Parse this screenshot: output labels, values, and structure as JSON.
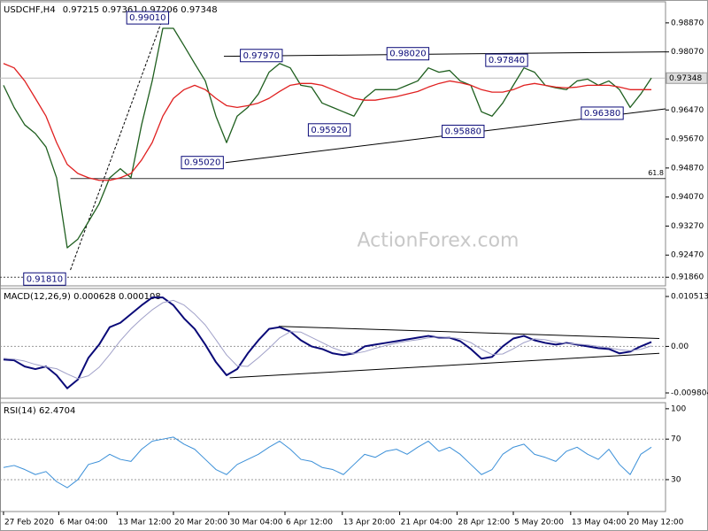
{
  "chart_data": [
    {
      "type": "line",
      "title": "USDCHF,H4",
      "subtitle": "0.97215 0.97361 0.97206 0.97348",
      "watermark": "ActionForex.com",
      "x": [
        0,
        1,
        2,
        3,
        4,
        5,
        6,
        7,
        8,
        9,
        10,
        11,
        12,
        13,
        14,
        15,
        16,
        17,
        18,
        19,
        20,
        21,
        22,
        23,
        24,
        25,
        26,
        27,
        28,
        29,
        30,
        31,
        32,
        33,
        34,
        35,
        36,
        37,
        38,
        39,
        40,
        41,
        42,
        43,
        44,
        45,
        46,
        47,
        48,
        49,
        50,
        51,
        52,
        53,
        54,
        55,
        56,
        57,
        58,
        59,
        60,
        61
      ],
      "xlim": [
        -0.33,
        62.33
      ],
      "ylim": [
        0.91622,
        0.99452
      ],
      "yticks": [
        {
          "value": 0.9887,
          "label": "0.98870"
        },
        {
          "value": 0.9807,
          "label": "0.98070"
        },
        {
          "value": 0.9647,
          "label": "0.96470"
        },
        {
          "value": 0.9567,
          "label": "0.95670"
        },
        {
          "value": 0.9487,
          "label": "0.94870"
        },
        {
          "value": 0.9407,
          "label": "0.94070"
        },
        {
          "value": 0.9327,
          "label": "0.93270"
        },
        {
          "value": 0.9247,
          "label": "0.92470"
        },
        {
          "value": 0.9186,
          "label": "0.91860"
        }
      ],
      "series": [
        {
          "color": "#1f5f1f",
          "values": [
            0.9715,
            0.9654,
            0.9606,
            0.9582,
            0.9545,
            0.946,
            0.9267,
            0.9291,
            0.9339,
            0.9388,
            0.946,
            0.9485,
            0.946,
            0.9606,
            0.9727,
            0.9872,
            0.9872,
            0.9824,
            0.9775,
            0.9727,
            0.963,
            0.9557,
            0.963,
            0.9654,
            0.9691,
            0.9751,
            0.9775,
            0.9763,
            0.9715,
            0.971,
            0.9666,
            0.9654,
            0.9642,
            0.963,
            0.9679,
            0.9703,
            0.9703,
            0.9703,
            0.9715,
            0.9727,
            0.9763,
            0.9751,
            0.9756,
            0.9727,
            0.9715,
            0.9642,
            0.963,
            0.9666,
            0.9715,
            0.9763,
            0.9751,
            0.9715,
            0.9708,
            0.9703,
            0.9727,
            0.9732,
            0.9715,
            0.9727,
            0.9703,
            0.9654,
            0.9691,
            0.9735
          ]
        },
        {
          "color": "#e02020",
          "values": [
            0.9775,
            0.9763,
            0.9727,
            0.9679,
            0.963,
            0.9557,
            0.9497,
            0.9472,
            0.946,
            0.9453,
            0.9453,
            0.946,
            0.9472,
            0.9509,
            0.9557,
            0.963,
            0.9679,
            0.9703,
            0.9715,
            0.9703,
            0.9679,
            0.9659,
            0.9654,
            0.9659,
            0.9666,
            0.9679,
            0.9698,
            0.9715,
            0.972,
            0.972,
            0.9715,
            0.9703,
            0.9691,
            0.9679,
            0.9674,
            0.9674,
            0.9679,
            0.9684,
            0.9691,
            0.9698,
            0.971,
            0.972,
            0.9727,
            0.9722,
            0.9715,
            0.9703,
            0.9696,
            0.9696,
            0.9703,
            0.9715,
            0.972,
            0.9715,
            0.971,
            0.9708,
            0.971,
            0.9715,
            0.9715,
            0.9715,
            0.971,
            0.9703,
            0.9703,
            0.9703
          ]
        }
      ],
      "annotations": [
        {
          "label": "0.99010",
          "value": 0.9901,
          "x": 11.6
        },
        {
          "label": "0.97970",
          "value": 0.9797,
          "x": 22.3
        },
        {
          "label": "0.98020",
          "value": 0.9802,
          "x": 36.1
        },
        {
          "label": "0.97840",
          "value": 0.9784,
          "x": 45.4
        },
        {
          "label": "0.95920",
          "value": 0.9592,
          "x": 28.7
        },
        {
          "label": "0.95880",
          "value": 0.9588,
          "x": 41.3
        },
        {
          "label": "0.96380",
          "value": 0.9638,
          "x": 54.4
        },
        {
          "label": "0.95020",
          "value": 0.9502,
          "x": 16.75
        },
        {
          "label": "0.91810",
          "value": 0.9181,
          "x": 1.9
        }
      ],
      "trendlines": [
        {
          "x": [
            20.75,
            62.33
          ],
          "values": [
            0.9795,
            0.9807
          ]
        },
        {
          "x": [
            20.9,
            62.33
          ],
          "values": [
            0.9502,
            0.965
          ]
        },
        {
          "x": [
            6.3,
            14.9
          ],
          "values": [
            0.9206,
            0.9892
          ],
          "dotted": true
        }
      ],
      "current_price": {
        "value": 0.97348,
        "label": "0.97348"
      },
      "low_level": 0.9186,
      "fib_level": {
        "value": 0.9458,
        "label": "61.8",
        "x": 6.3
      }
    },
    {
      "type": "line",
      "title": "MACD(12,26,9) 0.000628 0.000108",
      "x": [
        0,
        1,
        2,
        3,
        4,
        5,
        6,
        7,
        8,
        9,
        10,
        11,
        12,
        13,
        14,
        15,
        16,
        17,
        18,
        19,
        20,
        21,
        22,
        23,
        24,
        25,
        26,
        27,
        28,
        29,
        30,
        31,
        32,
        33,
        34,
        35,
        36,
        37,
        38,
        39,
        40,
        41,
        42,
        43,
        44,
        45,
        46,
        47,
        48,
        49,
        50,
        51,
        52,
        53,
        54,
        55,
        56,
        57,
        58,
        59,
        60,
        61
      ],
      "xlim": [
        -0.33,
        62.33
      ],
      "ylim": [
        -0.01092,
        0.01219
      ],
      "yticks": [
        0.010513,
        {
          "value": 0,
          "label": "0.00"
        },
        -0.009804
      ],
      "levels": [
        0
      ],
      "series": [
        {
          "color": "#0a0a78",
          "width": 2,
          "values": [
            -0.00276,
            -0.00294,
            -0.00423,
            -0.00478,
            -0.00423,
            -0.00607,
            -0.00883,
            -0.00699,
            -0.00239,
            0.00037,
            0.00405,
            0.00497,
            0.00681,
            0.00865,
            0.0103,
            0.0103,
            0.00865,
            0.00589,
            0.00368,
            0.00037,
            -0.00331,
            -0.00607,
            -0.00478,
            -0.00147,
            0.00129,
            0.00368,
            0.00405,
            0.00313,
            0.00129,
            0,
            -0.00055,
            -0.00147,
            -0.00184,
            -0.00147,
            0,
            0.00037,
            0.00074,
            0.0011,
            0.00147,
            0.00184,
            0.00221,
            0.00184,
            0.00184,
            0.0011,
            -0.00055,
            -0.00258,
            -0.00221,
            0,
            0.00166,
            0.00221,
            0.00129,
            0.00074,
            0.00037,
            0.00074,
            0.00037,
            0,
            -0.00037,
            -0.00055,
            -0.00147,
            -0.0011,
            0,
            0.00092
          ]
        },
        {
          "color": "#a0a0c8",
          "width": 1,
          "values": [
            -0.0025,
            -0.0027,
            -0.0031,
            -0.0038,
            -0.0043,
            -0.0047,
            -0.0058,
            -0.0068,
            -0.0062,
            -0.0044,
            -0.0017,
            0.0012,
            0.0037,
            0.0058,
            0.0077,
            0.0092,
            0.0097,
            0.0087,
            0.0068,
            0.0045,
            0.0014,
            -0.0018,
            -0.0041,
            -0.0042,
            -0.0024,
            -0.0004,
            0.0018,
            0.0031,
            0.003,
            0.0019,
            0.0008,
            -0.0003,
            -0.0011,
            -0.0015,
            -0.0011,
            -0.0004,
            0.0002,
            0.0007,
            0.0011,
            0.0014,
            0.0018,
            0.002,
            0.0019,
            0.0016,
            0.0008,
            -0.0006,
            -0.0017,
            -0.0016,
            -0.0005,
            0.0008,
            0.0016,
            0.0014,
            0.0009,
            0.0006,
            0.0005,
            0.0003,
            0,
            -0.0003,
            -0.0007,
            -0.0009,
            -0.0006,
            0.0001
          ]
        }
      ],
      "trendlines": [
        {
          "x": [
            25.9,
            61.75
          ],
          "values": [
            0.00423,
            0.00166
          ]
        },
        {
          "x": [
            21.3,
            61.75
          ],
          "values": [
            -0.00662,
            -0.00147
          ]
        }
      ]
    },
    {
      "type": "line",
      "title": "RSI(14) 62.4704",
      "x": [
        0,
        1,
        2,
        3,
        4,
        5,
        6,
        7,
        8,
        9,
        10,
        11,
        12,
        13,
        14,
        15,
        16,
        17,
        18,
        19,
        20,
        21,
        22,
        23,
        24,
        25,
        26,
        27,
        28,
        29,
        30,
        31,
        32,
        33,
        34,
        35,
        36,
        37,
        38,
        39,
        40,
        41,
        42,
        43,
        44,
        45,
        46,
        47,
        48,
        49,
        50,
        51,
        52,
        53,
        54,
        55,
        56,
        57,
        58,
        59,
        60,
        61
      ],
      "xlim": [
        -0.33,
        62.33
      ],
      "ylim": [
        -1.5,
        106
      ],
      "yticks": [
        100,
        70,
        30
      ],
      "levels": [
        70,
        30
      ],
      "xticks": [
        {
          "value": 0,
          "label": "27 Feb 2020"
        },
        {
          "value": 5.2,
          "label": "6 Mar 04:00"
        },
        {
          "value": 10.7,
          "label": "13 Mar 12:00"
        },
        {
          "value": 16,
          "label": "20 Mar 20:00"
        },
        {
          "value": 21.2,
          "label": "30 Mar 04:00"
        },
        {
          "value": 26.5,
          "label": "6 Apr 12:00"
        },
        {
          "value": 31.9,
          "label": "13 Apr 20:00"
        },
        {
          "value": 37.3,
          "label": "21 Apr 04:00"
        },
        {
          "value": 42.7,
          "label": "28 Apr 12:00"
        },
        {
          "value": 48,
          "label": "5 May 20:00"
        },
        {
          "value": 53.4,
          "label": "13 May 04:00"
        },
        {
          "value": 58.8,
          "label": "20 May 12:00"
        }
      ],
      "series": [
        {
          "color": "#3a8fd8",
          "width": 1,
          "values": [
            42,
            44,
            40,
            35,
            38,
            28,
            22,
            30,
            45,
            48,
            55,
            50,
            48,
            60,
            68,
            70,
            72,
            65,
            60,
            50,
            40,
            35,
            45,
            50,
            55,
            62,
            68,
            60,
            50,
            48,
            42,
            40,
            35,
            45,
            55,
            52,
            58,
            60,
            55,
            62,
            68,
            58,
            62,
            55,
            45,
            35,
            40,
            55,
            62,
            65,
            55,
            52,
            48,
            58,
            62,
            55,
            50,
            60,
            45,
            35,
            55,
            62
          ]
        }
      ]
    }
  ]
}
